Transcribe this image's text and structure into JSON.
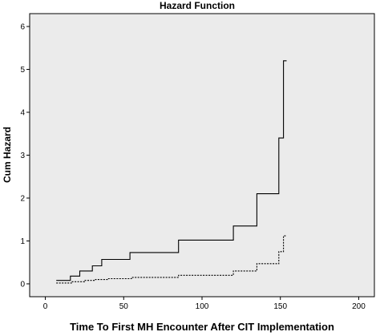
{
  "chart_data": {
    "type": "line",
    "title": "Hazard Function",
    "xlabel": "Time To First MH Encounter After CIT Implementation",
    "ylabel": "Cum Hazard",
    "xlim": [
      -10,
      210
    ],
    "ylim": [
      -0.3,
      6.3
    ],
    "xticks": [
      0,
      50,
      100,
      150,
      200
    ],
    "yticks": [
      0,
      1,
      2,
      3,
      4,
      5,
      6
    ],
    "grid": false,
    "plot_background": "#ebebeb",
    "series": [
      {
        "style": "solid",
        "color": "#000000",
        "x": [
          7,
          16,
          22,
          30,
          36,
          54,
          85,
          120,
          135,
          149,
          152,
          154
        ],
        "y": [
          0.08,
          0.18,
          0.3,
          0.42,
          0.57,
          0.73,
          1.02,
          1.35,
          2.1,
          3.4,
          5.2,
          5.2
        ]
      },
      {
        "style": "dashed",
        "color": "#000000",
        "x": [
          7,
          17,
          25,
          32,
          40,
          55,
          85,
          120,
          135,
          149,
          152,
          154
        ],
        "y": [
          0.02,
          0.05,
          0.08,
          0.1,
          0.12,
          0.15,
          0.2,
          0.3,
          0.47,
          0.75,
          1.12,
          1.12
        ]
      }
    ]
  }
}
